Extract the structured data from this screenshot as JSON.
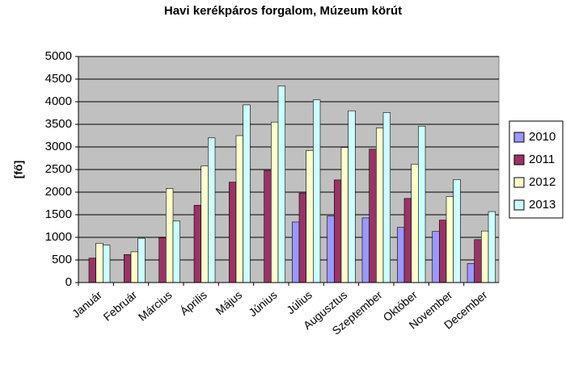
{
  "chart_data": {
    "type": "bar",
    "title": "Havi kerékpáros forgalom, Múzeum körút",
    "y_label": "[fő]",
    "categories": [
      "Január",
      "Február",
      "Március",
      "Április",
      "Május",
      "Június",
      "Július",
      "Augusztus",
      "Szeptember",
      "Október",
      "November",
      "December"
    ],
    "series": [
      {
        "name": "2010",
        "color": "#9999ff",
        "values": [
          null,
          null,
          null,
          null,
          null,
          null,
          1340,
          1470,
          1430,
          1220,
          1130,
          420
        ]
      },
      {
        "name": "2011",
        "color": "#993366",
        "values": [
          540,
          620,
          990,
          1710,
          2220,
          2480,
          1980,
          2270,
          2950,
          1860,
          1380,
          950
        ]
      },
      {
        "name": "2012",
        "color": "#ffffcc",
        "values": [
          870,
          680,
          2080,
          2580,
          3250,
          3550,
          2920,
          2990,
          3420,
          2620,
          1900,
          1140
        ]
      },
      {
        "name": "2013",
        "color": "#ccffff",
        "values": [
          830,
          980,
          1360,
          3200,
          3930,
          4350,
          4040,
          3800,
          3760,
          3460,
          2280,
          1570
        ]
      }
    ],
    "ylim": [
      0,
      5000
    ],
    "yticks": [
      0,
      500,
      1000,
      1500,
      2000,
      2500,
      3000,
      3500,
      4000,
      4500,
      5000
    ],
    "grid": true,
    "legend": "right",
    "plot_background": "#c0c0c0"
  }
}
